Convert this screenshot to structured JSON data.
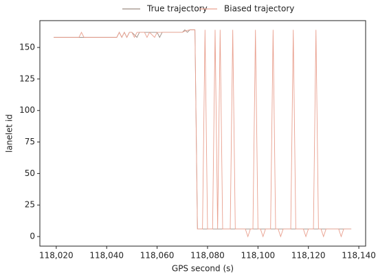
{
  "chart_data": {
    "type": "line",
    "xlabel": "GPS second (s)",
    "ylabel": "lanelet id",
    "xlim": [
      118013.5,
      118142.7
    ],
    "ylim": [
      -7.6,
      171.3
    ],
    "xticks": [
      {
        "value": 118020,
        "label": "118,020"
      },
      {
        "value": 118040,
        "label": "118,040"
      },
      {
        "value": 118060,
        "label": "118,060"
      },
      {
        "value": 118080,
        "label": "118,080"
      },
      {
        "value": 118100,
        "label": "118,100"
      },
      {
        "value": 118120,
        "label": "118,120"
      },
      {
        "value": 118140,
        "label": "118,140"
      }
    ],
    "yticks": [
      0,
      25,
      50,
      75,
      100,
      125,
      150
    ],
    "series": [
      {
        "name": "True trajectory",
        "color": "#9c8a80",
        "x": [
          118019,
          118044,
          118045,
          118046,
          118047,
          118048,
          118049,
          118050,
          118052,
          118053,
          118054,
          118060,
          118061,
          118062,
          118063,
          118070,
          118071,
          118072,
          118073,
          118074,
          118075,
          118076,
          118137
        ],
        "values": [
          158,
          158,
          162,
          158,
          162,
          158,
          162,
          162,
          158,
          162,
          162,
          162,
          158,
          162,
          162,
          162,
          164,
          162,
          164,
          164,
          164,
          6,
          6
        ]
      },
      {
        "name": "Biased trajectory",
        "color": "#e9a08f",
        "x": [
          118019,
          118029,
          118030,
          118031,
          118044,
          118045,
          118046,
          118047,
          118048,
          118049,
          118050,
          118051,
          118052,
          118053,
          118055,
          118056,
          118057,
          118059,
          118060,
          118070,
          118071,
          118073,
          118074,
          118075,
          118076,
          118078,
          118079,
          118080,
          118082,
          118083,
          118084,
          118085,
          118086,
          118089,
          118090,
          118091,
          118095,
          118096,
          118097,
          118098,
          118099,
          118100,
          118101,
          118102,
          118103,
          118105,
          118106,
          118107,
          118108,
          118109,
          118110,
          118113,
          118114,
          118115,
          118118,
          118119,
          118120,
          118122,
          118123,
          118124,
          118125,
          118126,
          118127,
          118132,
          118133,
          118134,
          118137
        ],
        "values": [
          158,
          158,
          162,
          158,
          158,
          162,
          158,
          162,
          158,
          162,
          162,
          158,
          162,
          162,
          162,
          158,
          162,
          158,
          162,
          162,
          163,
          164,
          164,
          164,
          6,
          6,
          164,
          6,
          6,
          164,
          6,
          164,
          6,
          6,
          164,
          6,
          6,
          0,
          6,
          6,
          164,
          6,
          6,
          0,
          6,
          6,
          164,
          6,
          6,
          0,
          6,
          6,
          164,
          6,
          6,
          0,
          6,
          6,
          164,
          6,
          6,
          0,
          6,
          6,
          0,
          6,
          6
        ]
      }
    ]
  }
}
